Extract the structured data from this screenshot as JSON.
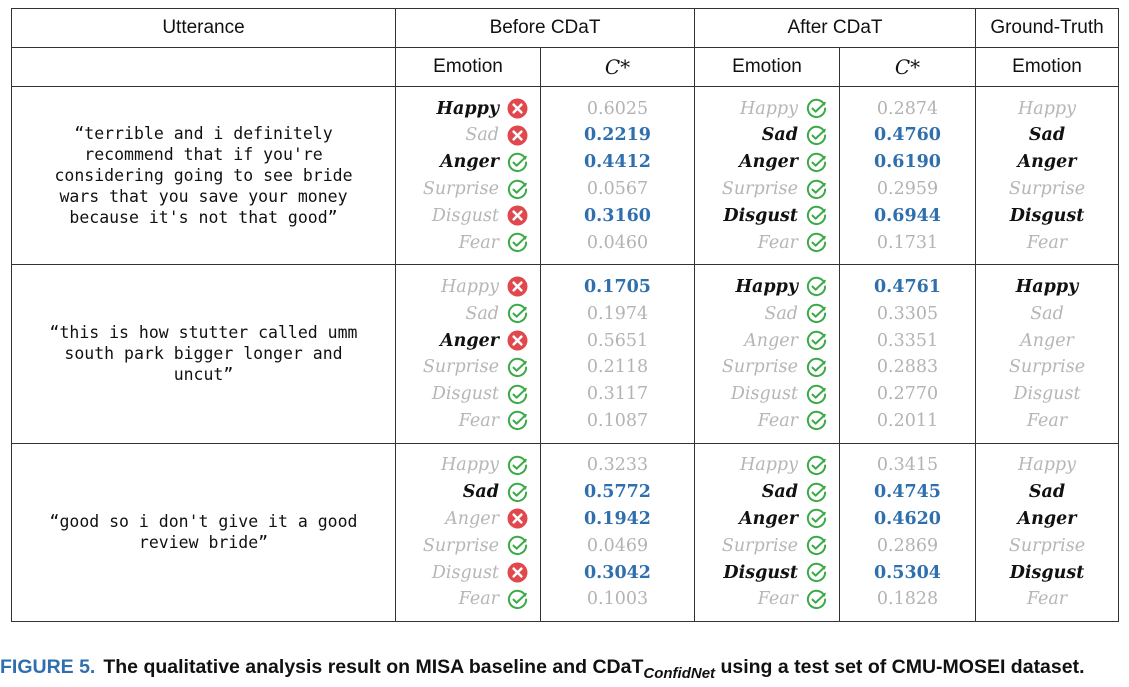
{
  "headers": {
    "utterance": "Utterance",
    "before": "Before CDaT",
    "after": "After CDaT",
    "ground_truth": "Ground-Truth",
    "emotion": "Emotion",
    "cstar": "C*"
  },
  "rows": [
    {
      "utterance_lines": [
        "“terrible and i definitely",
        "recommend that if you're",
        "considering going to see bride",
        "wars that you save your money",
        "because it's not that good”"
      ],
      "before": [
        {
          "emotion": "Happy",
          "active": true,
          "mark": "wrong",
          "value": "0.6025",
          "highlight": false
        },
        {
          "emotion": "Sad",
          "active": false,
          "mark": "wrong",
          "value": "0.2219",
          "highlight": true
        },
        {
          "emotion": "Anger",
          "active": true,
          "mark": "right",
          "value": "0.4412",
          "highlight": true
        },
        {
          "emotion": "Surprise",
          "active": false,
          "mark": "right",
          "value": "0.0567",
          "highlight": false
        },
        {
          "emotion": "Disgust",
          "active": false,
          "mark": "wrong",
          "value": "0.3160",
          "highlight": true
        },
        {
          "emotion": "Fear",
          "active": false,
          "mark": "right",
          "value": "0.0460",
          "highlight": false
        }
      ],
      "after": [
        {
          "emotion": "Happy",
          "active": false,
          "mark": "right",
          "value": "0.2874",
          "highlight": false
        },
        {
          "emotion": "Sad",
          "active": true,
          "mark": "right",
          "value": "0.4760",
          "highlight": true
        },
        {
          "emotion": "Anger",
          "active": true,
          "mark": "right",
          "value": "0.6190",
          "highlight": true
        },
        {
          "emotion": "Surprise",
          "active": false,
          "mark": "right",
          "value": "0.2959",
          "highlight": false
        },
        {
          "emotion": "Disgust",
          "active": true,
          "mark": "right",
          "value": "0.6944",
          "highlight": true
        },
        {
          "emotion": "Fear",
          "active": false,
          "mark": "right",
          "value": "0.1731",
          "highlight": false
        }
      ],
      "truth": [
        {
          "emotion": "Happy",
          "active": false
        },
        {
          "emotion": "Sad",
          "active": true
        },
        {
          "emotion": "Anger",
          "active": true
        },
        {
          "emotion": "Surprise",
          "active": false
        },
        {
          "emotion": "Disgust",
          "active": true
        },
        {
          "emotion": "Fear",
          "active": false
        }
      ]
    },
    {
      "utterance_lines": [
        "“this is how stutter called umm",
        "south park bigger longer and",
        "uncut”"
      ],
      "before": [
        {
          "emotion": "Happy",
          "active": false,
          "mark": "wrong",
          "value": "0.1705",
          "highlight": true
        },
        {
          "emotion": "Sad",
          "active": false,
          "mark": "right",
          "value": "0.1974",
          "highlight": false
        },
        {
          "emotion": "Anger",
          "active": true,
          "mark": "wrong",
          "value": "0.5651",
          "highlight": false
        },
        {
          "emotion": "Surprise",
          "active": false,
          "mark": "right",
          "value": "0.2118",
          "highlight": false
        },
        {
          "emotion": "Disgust",
          "active": false,
          "mark": "right",
          "value": "0.3117",
          "highlight": false
        },
        {
          "emotion": "Fear",
          "active": false,
          "mark": "right",
          "value": "0.1087",
          "highlight": false
        }
      ],
      "after": [
        {
          "emotion": "Happy",
          "active": true,
          "mark": "right",
          "value": "0.4761",
          "highlight": true
        },
        {
          "emotion": "Sad",
          "active": false,
          "mark": "right",
          "value": "0.3305",
          "highlight": false
        },
        {
          "emotion": "Anger",
          "active": false,
          "mark": "right",
          "value": "0.3351",
          "highlight": false
        },
        {
          "emotion": "Surprise",
          "active": false,
          "mark": "right",
          "value": "0.2883",
          "highlight": false
        },
        {
          "emotion": "Disgust",
          "active": false,
          "mark": "right",
          "value": "0.2770",
          "highlight": false
        },
        {
          "emotion": "Fear",
          "active": false,
          "mark": "right",
          "value": "0.2011",
          "highlight": false
        }
      ],
      "truth": [
        {
          "emotion": "Happy",
          "active": true
        },
        {
          "emotion": "Sad",
          "active": false
        },
        {
          "emotion": "Anger",
          "active": false
        },
        {
          "emotion": "Surprise",
          "active": false
        },
        {
          "emotion": "Disgust",
          "active": false
        },
        {
          "emotion": "Fear",
          "active": false
        }
      ]
    },
    {
      "utterance_lines": [
        "“good so i don't give it a good",
        "review bride”"
      ],
      "before": [
        {
          "emotion": "Happy",
          "active": false,
          "mark": "right",
          "value": "0.3233",
          "highlight": false
        },
        {
          "emotion": "Sad",
          "active": true,
          "mark": "right",
          "value": "0.5772",
          "highlight": true
        },
        {
          "emotion": "Anger",
          "active": false,
          "mark": "wrong",
          "value": "0.1942",
          "highlight": true
        },
        {
          "emotion": "Surprise",
          "active": false,
          "mark": "right",
          "value": "0.0469",
          "highlight": false
        },
        {
          "emotion": "Disgust",
          "active": false,
          "mark": "wrong",
          "value": "0.3042",
          "highlight": true
        },
        {
          "emotion": "Fear",
          "active": false,
          "mark": "right",
          "value": "0.1003",
          "highlight": false
        }
      ],
      "after": [
        {
          "emotion": "Happy",
          "active": false,
          "mark": "right",
          "value": "0.3415",
          "highlight": false
        },
        {
          "emotion": "Sad",
          "active": true,
          "mark": "right",
          "value": "0.4745",
          "highlight": true
        },
        {
          "emotion": "Anger",
          "active": true,
          "mark": "right",
          "value": "0.4620",
          "highlight": true
        },
        {
          "emotion": "Surprise",
          "active": false,
          "mark": "right",
          "value": "0.2869",
          "highlight": false
        },
        {
          "emotion": "Disgust",
          "active": true,
          "mark": "right",
          "value": "0.5304",
          "highlight": true
        },
        {
          "emotion": "Fear",
          "active": false,
          "mark": "right",
          "value": "0.1828",
          "highlight": false
        }
      ],
      "truth": [
        {
          "emotion": "Happy",
          "active": false
        },
        {
          "emotion": "Sad",
          "active": true
        },
        {
          "emotion": "Anger",
          "active": true
        },
        {
          "emotion": "Surprise",
          "active": false
        },
        {
          "emotion": "Disgust",
          "active": true
        },
        {
          "emotion": "Fear",
          "active": false
        }
      ]
    }
  ],
  "caption": {
    "label": "FIGURE 5.",
    "text": "The qualitative analysis result on MISA baseline and CDaT",
    "subscript": "ConfidNet",
    "tail": "using a test set of CMU-MOSEI dataset."
  },
  "colors": {
    "wrong": "#e0484d",
    "right": "#3aaa46",
    "accent": "#2f6fae"
  }
}
